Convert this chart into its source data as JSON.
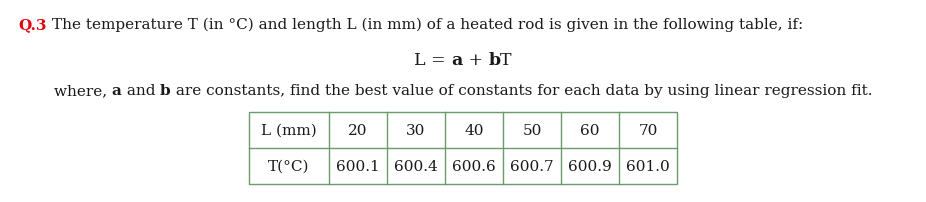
{
  "q_label": "Q.3",
  "line1": "The temperature T (in °C) and length L (in mm) of a heated rod is given in the following table, if:",
  "line3_end": " are constants, find the best value of constants for each data by using linear regression fit.",
  "col_header": [
    "L (mm)",
    "20",
    "30",
    "40",
    "50",
    "60",
    "70"
  ],
  "col_data": [
    "T(°C)",
    "600.1",
    "600.4",
    "600.6",
    "600.7",
    "600.9",
    "601.0"
  ],
  "q_color": "#e8000d",
  "text_color": "#1a1a1a",
  "table_border_color": "#6b9a6b",
  "bg_color": "#ffffff",
  "font_size_main": 11.0,
  "font_size_equation": 12.5,
  "font_size_table": 11.0,
  "fig_width": 9.26,
  "fig_height": 2.03,
  "dpi": 100
}
